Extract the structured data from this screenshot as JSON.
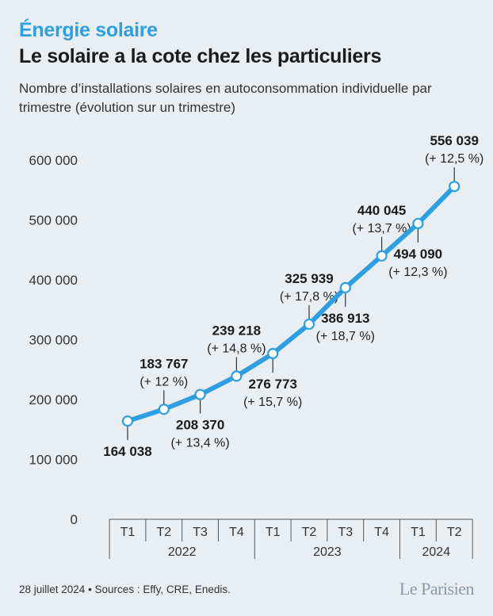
{
  "header": {
    "kicker": "Énergie solaire",
    "title": "Le solaire a la cote chez les particuliers",
    "subtitle": "Nombre d’installations solaires en autoconsommation individuelle par trimestre (évolution sur un trimestre)"
  },
  "chart_data": {
    "type": "line",
    "ylim": [
      0,
      600000
    ],
    "yticks": [
      "0",
      "100 000",
      "200 000",
      "300 000",
      "400 000",
      "500 000",
      "600 000"
    ],
    "quarters": [
      "T1",
      "T2",
      "T3",
      "T4",
      "T1",
      "T2",
      "T3",
      "T4",
      "T1",
      "T2"
    ],
    "years": [
      {
        "label": "2022",
        "start": 0,
        "end": 3
      },
      {
        "label": "2023",
        "start": 4,
        "end": 7
      },
      {
        "label": "2024",
        "start": 8,
        "end": 9
      }
    ],
    "values": [
      164038,
      183767,
      208370,
      239218,
      276773,
      325939,
      386913,
      440045,
      494090,
      556039
    ],
    "value_labels": [
      "164 038",
      "183 767",
      "208 370",
      "239 218",
      "276 773",
      "325 939",
      "386 913",
      "440 045",
      "494 090",
      "556 039"
    ],
    "change_labels": [
      "",
      "(+ 12 %)",
      "(+ 13,4 %)",
      "(+ 14,8 %)",
      "(+ 15,7 %)",
      "(+ 17,8 %)",
      "(+ 18,7 %)",
      "(+ 13,7 %)",
      "(+ 12,3 %)",
      "(+ 12,5 %)"
    ],
    "label_position": [
      "below",
      "above",
      "below",
      "above",
      "below",
      "above",
      "below",
      "above",
      "below",
      "above"
    ],
    "line_color": "#2e9fe2",
    "grid": false
  },
  "footer": {
    "source": "28 juillet 2024 • Sources : Effy, CRE, Enedis.",
    "logo": "Le Parisien"
  }
}
